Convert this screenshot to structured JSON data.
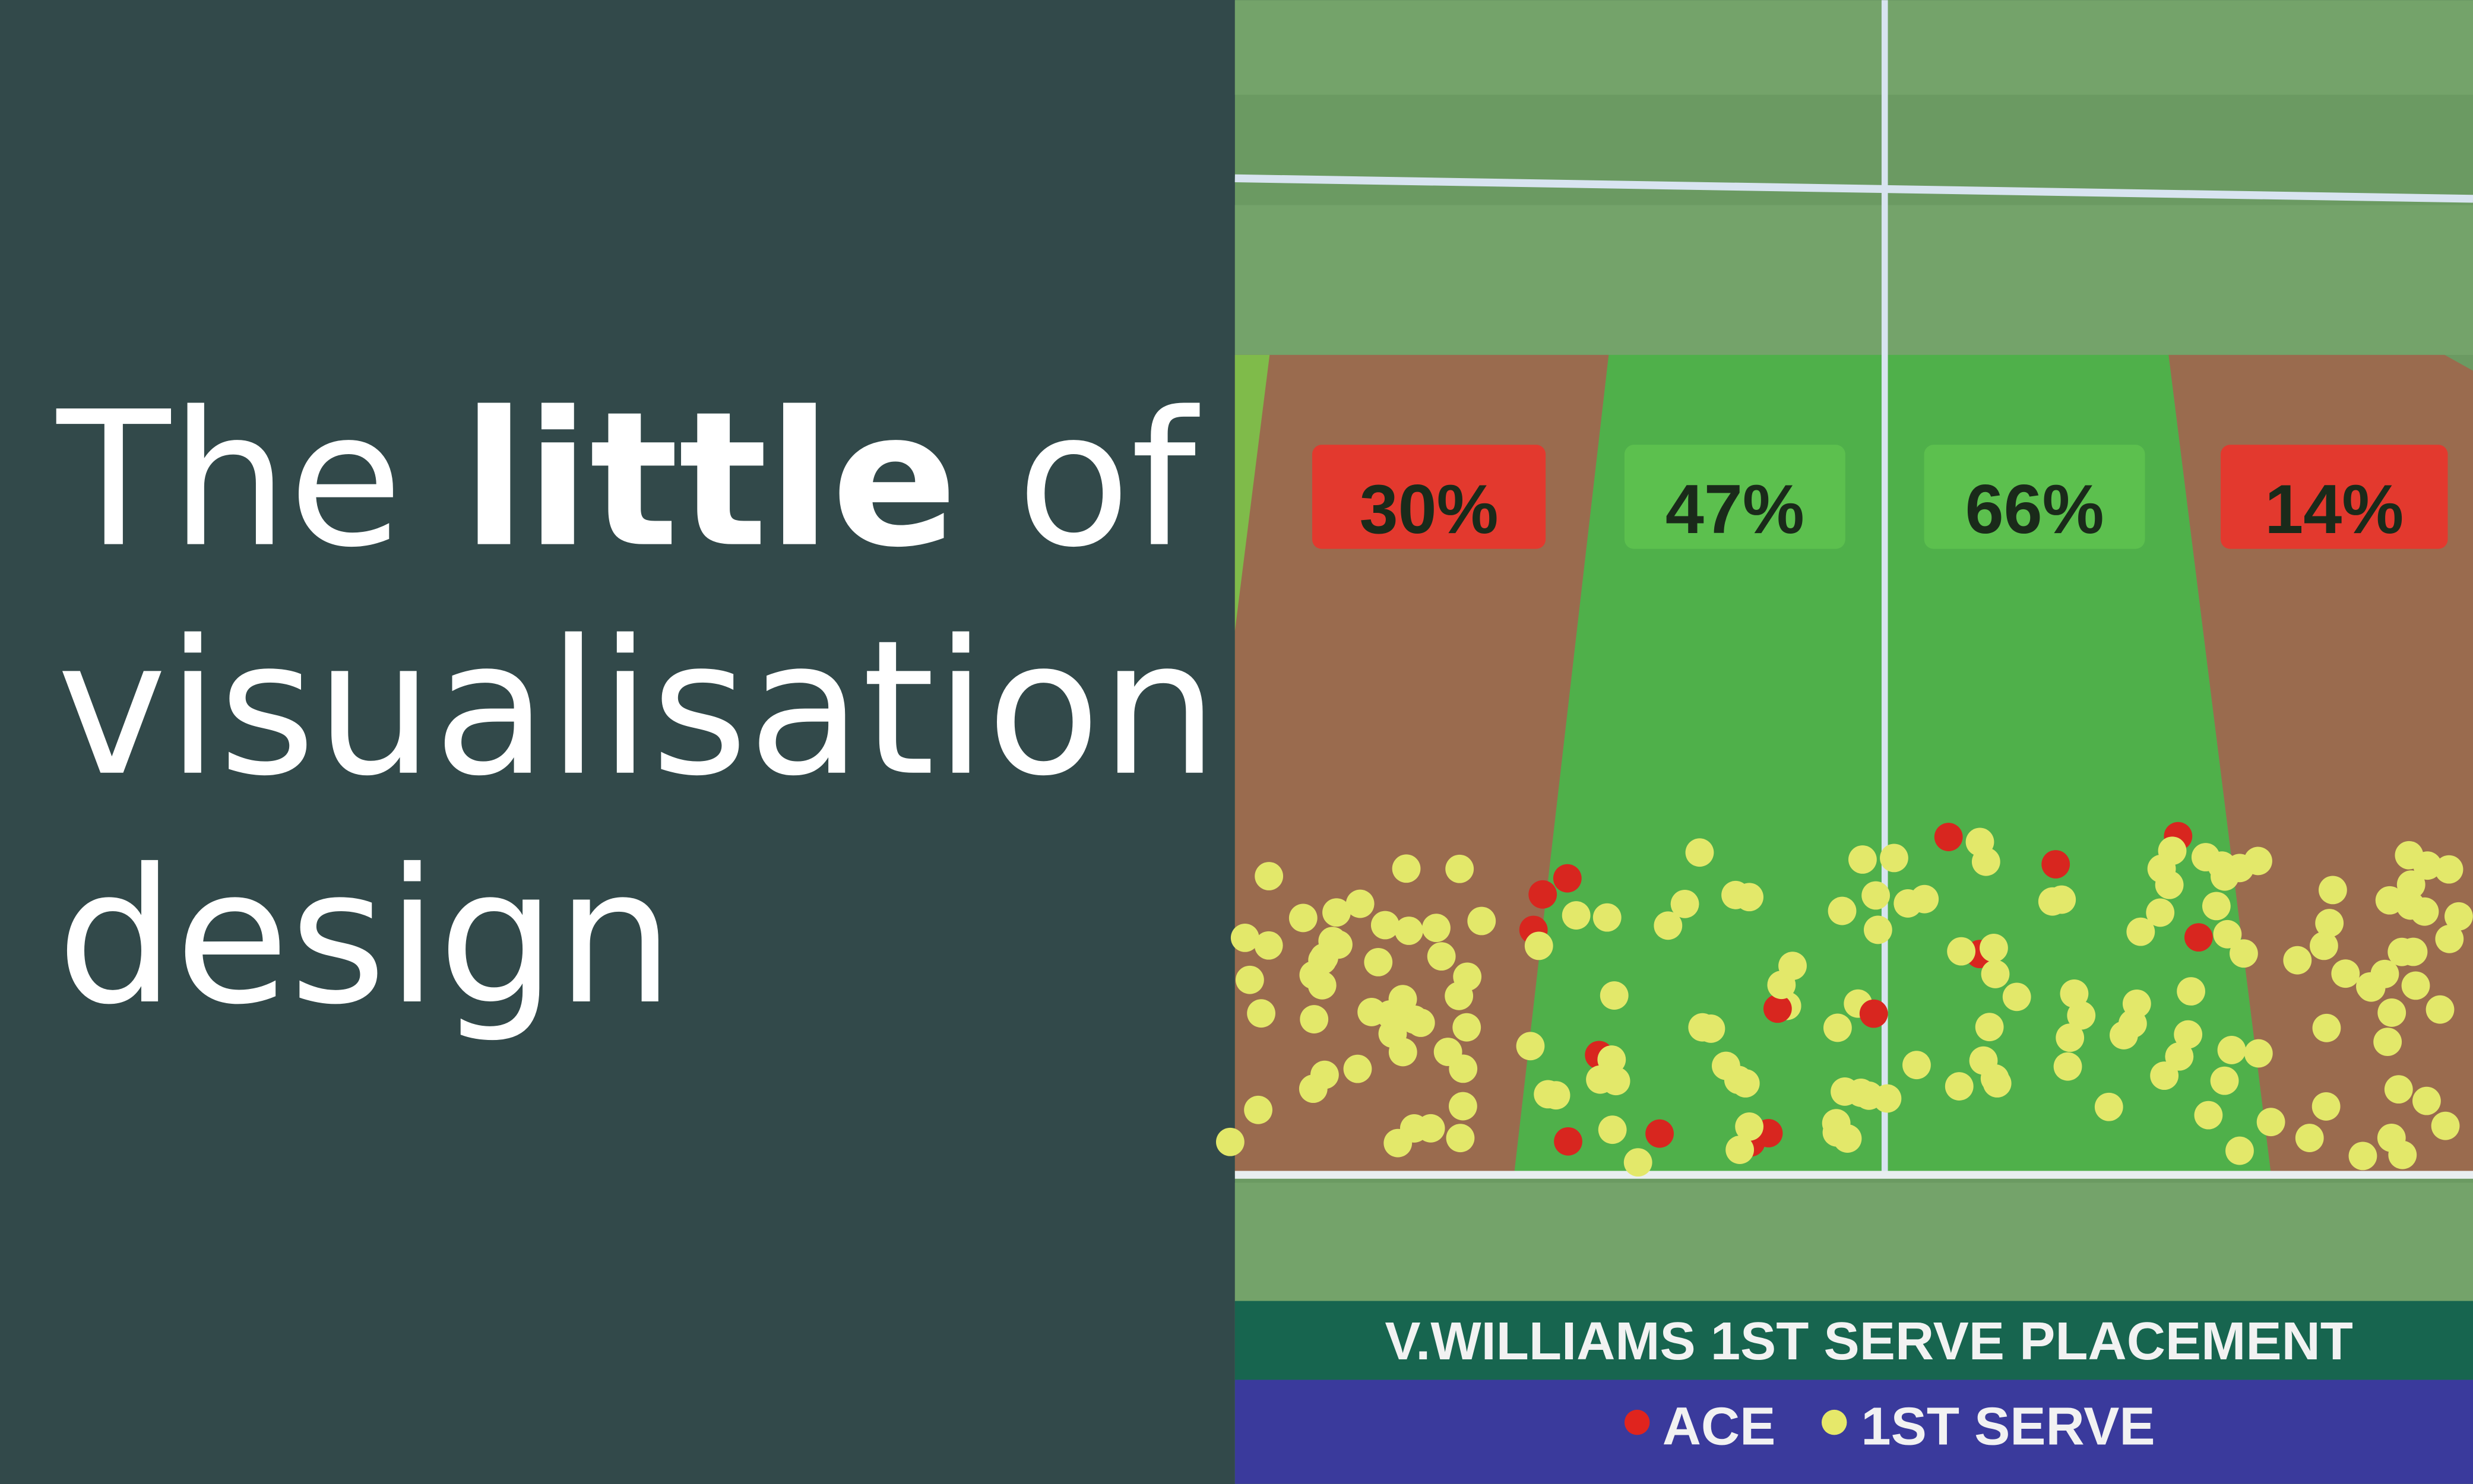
{
  "header": {
    "line1": [
      "The",
      "little",
      "of"
    ],
    "line2": "visualisation",
    "line3": "design"
  },
  "graphic": {
    "zones": [
      "30%",
      "47%",
      "66%",
      "14%"
    ],
    "caption": "V.WILLIAMS 1ST SERVE PLACEMENT",
    "legend": [
      "ACE",
      "1ST SERVE"
    ]
  }
}
